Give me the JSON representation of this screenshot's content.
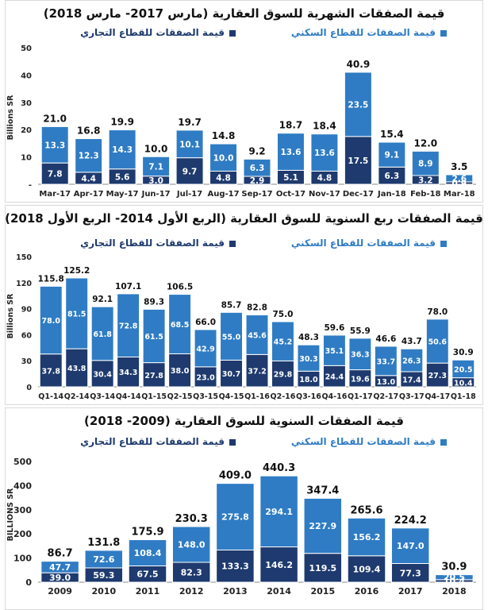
{
  "colors": {
    "residential": "#2f7cc4",
    "commercial": "#1e3a6e",
    "text": "#111111",
    "axis": "#444444"
  },
  "chart_data": [
    {
      "type": "bar",
      "stacked": true,
      "title": "قيمة الصفقات الشهرية للسوق العقارية (مارس 2017- مارس 2018)",
      "ylabel": "Billions SR",
      "ylim": [
        0,
        50
      ],
      "yticks": [
        "50",
        "40",
        "30",
        "20",
        "10",
        "-"
      ],
      "ytick_values": [
        50,
        40,
        30,
        20,
        10,
        0
      ],
      "legend": {
        "residential": "قيمة الصفقات للقطاع السكني",
        "commercial": "قيمة الصفقات للقطاع التجاري"
      },
      "categories": [
        "Mar-17",
        "Apr-17",
        "May-17",
        "Jun-17",
        "Jul-17",
        "Aug-17",
        "Sep-17",
        "Oct-17",
        "Nov-17",
        "Dec-17",
        "Jan-18",
        "Feb-18",
        "Mar-18"
      ],
      "series": [
        {
          "name": "قيمة الصفقات للقطاع التجاري",
          "key": "commercial",
          "values": [
            7.8,
            4.4,
            5.6,
            3.0,
            9.7,
            4.8,
            2.9,
            5.1,
            4.8,
            17.5,
            6.3,
            3.2,
            0.9
          ],
          "labels": [
            "7.8",
            "4.4",
            "5.6",
            "3.0",
            "9.7",
            "4.8",
            "2.9",
            "5.1",
            "4.8",
            "17.5",
            "6.3",
            "3.2",
            "0.9"
          ]
        },
        {
          "name": "قيمة الصفقات للقطاع السكني",
          "key": "residential",
          "values": [
            13.3,
            12.3,
            14.3,
            7.1,
            10.1,
            10.0,
            6.3,
            13.6,
            13.6,
            23.5,
            9.1,
            8.9,
            2.6
          ],
          "labels": [
            "13.3",
            "12.3",
            "14.3",
            "7.1",
            "10.1",
            "10.0",
            "6.3",
            "13.6",
            "13.6",
            "23.5",
            "9.1",
            "8.9",
            "2.6"
          ]
        }
      ],
      "totals": [
        "21.0",
        "16.8",
        "19.9",
        "10.0",
        "19.7",
        "14.8",
        "9.2",
        "18.7",
        "18.4",
        "40.9",
        "15.4",
        "12.0",
        "3.5"
      ]
    },
    {
      "type": "bar",
      "stacked": true,
      "title": "قيمة الصفقات ربع السنوية للسوق العقارية (الربع الأول 2014- الربع الأول 2018)",
      "ylabel": "Billions SR",
      "ylim": [
        0,
        150
      ],
      "yticks": [
        "150",
        "120",
        "90",
        "60",
        "30",
        "0"
      ],
      "ytick_values": [
        150,
        120,
        90,
        60,
        30,
        0
      ],
      "legend": {
        "residential": "قيمة الصفقات للقطاع السكني",
        "commercial": "قيمة الصفقات للقطاع التجاري"
      },
      "categories": [
        "Q1-14",
        "Q2-14",
        "Q3-14",
        "Q4-14",
        "Q1-15",
        "Q2-15",
        "Q3-15",
        "Q4-15",
        "Q1-16",
        "Q2-16",
        "Q3-16",
        "Q4-16",
        "Q1-17",
        "Q2-17",
        "Q3-17",
        "Q4-17",
        "Q1-18"
      ],
      "series": [
        {
          "name": "قيمة الصفقات للقطاع التجاري",
          "key": "commercial",
          "values": [
            37.8,
            43.8,
            30.4,
            34.3,
            27.8,
            38.0,
            23.0,
            30.7,
            37.2,
            29.8,
            18.0,
            24.4,
            19.6,
            13.0,
            17.4,
            27.3,
            10.4
          ],
          "labels": [
            "37.8",
            "43.8",
            "30.4",
            "34.3",
            "27.8",
            "38.0",
            "23.0",
            "30.7",
            "37.2",
            "29.8",
            "18.0",
            "24.4",
            "19.6",
            "13.0",
            "17.4",
            "27.3",
            "10.4"
          ]
        },
        {
          "name": "قيمة الصفقات للقطاع السكني",
          "key": "residential",
          "values": [
            78.0,
            81.5,
            61.8,
            72.8,
            61.5,
            68.5,
            42.9,
            55.0,
            45.6,
            45.2,
            30.3,
            35.1,
            36.3,
            33.7,
            26.3,
            50.6,
            20.5
          ],
          "labels": [
            "78.0",
            "81.5",
            "61.8",
            "72.8",
            "61.5",
            "68.5",
            "42.9",
            "55.0",
            "45.6",
            "45.2",
            "30.3",
            "35.1",
            "36.3",
            "33.7",
            "26.3",
            "50.6",
            "20.5"
          ]
        }
      ],
      "totals": [
        "115.8",
        "125.2",
        "92.1",
        "107.1",
        "89.3",
        "106.5",
        "66.0",
        "85.7",
        "82.8",
        "75.0",
        "48.3",
        "59.6",
        "55.9",
        "46.6",
        "43.7",
        "78.0",
        "30.9"
      ]
    },
    {
      "type": "bar",
      "stacked": true,
      "title": "قيمة الصفقات السنوية للسوق العقارية (2009- 2018)",
      "ylabel": "BILLIONS SR",
      "ylim": [
        0,
        500
      ],
      "yticks": [
        "500",
        "400",
        "300",
        "200",
        "100",
        "0"
      ],
      "ytick_values": [
        500,
        400,
        300,
        200,
        100,
        0
      ],
      "legend": {
        "residential": "قيمة الصفقات للقطاع السكني",
        "commercial": "قيمة الصفقات للقطاع التجاري"
      },
      "categories": [
        "2009",
        "2010",
        "2011",
        "2012",
        "2013",
        "2014",
        "2015",
        "2016",
        "2017",
        "2018"
      ],
      "series": [
        {
          "name": "قيمة الصفقات للقطاع التجاري",
          "key": "commercial",
          "values": [
            39.0,
            59.3,
            67.5,
            82.3,
            133.3,
            146.2,
            119.5,
            109.4,
            77.3,
            10.4
          ],
          "labels": [
            "39.0",
            "59.3",
            "67.5",
            "82.3",
            "133.3",
            "146.2",
            "119.5",
            "109.4",
            "77.3",
            "10.4"
          ]
        },
        {
          "name": "قيمة الصفقات للقطاع السكني",
          "key": "residential",
          "values": [
            47.7,
            72.6,
            108.4,
            148.0,
            275.8,
            294.1,
            227.9,
            156.2,
            147.0,
            20.5
          ],
          "labels": [
            "47.7",
            "72.6",
            "108.4",
            "148.0",
            "275.8",
            "294.1",
            "227.9",
            "156.2",
            "147.0",
            "20.5"
          ]
        }
      ],
      "totals": [
        "86.7",
        "131.8",
        "175.9",
        "230.3",
        "409.0",
        "440.3",
        "347.4",
        "265.6",
        "224.2",
        "30.9"
      ]
    }
  ]
}
